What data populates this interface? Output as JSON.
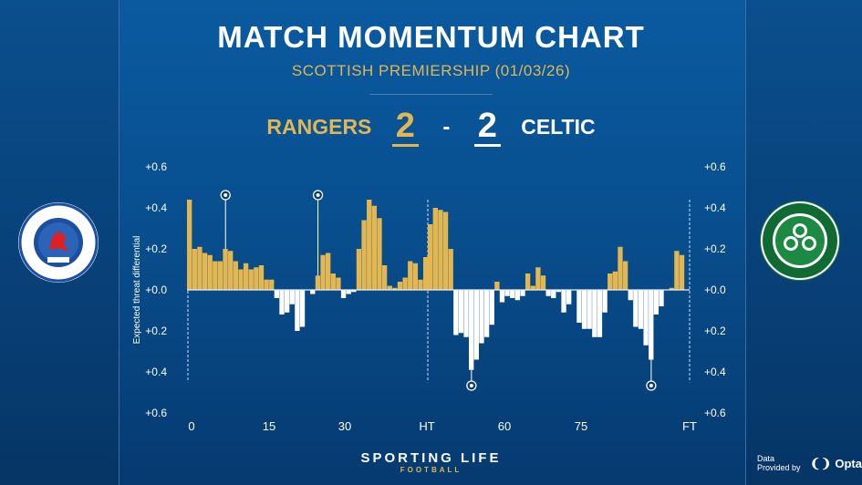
{
  "header": {
    "title": "MATCH MOMENTUM CHART",
    "subtitle": "SCOTTISH PREMIERSHIP (01/03/26)"
  },
  "score": {
    "home_team": "RANGERS",
    "home_goals": "2",
    "separator": "-",
    "away_goals": "2",
    "away_team": "CELTIC"
  },
  "colors": {
    "home": "#e2b752",
    "away": "#ffffff",
    "background": "#0a5aa0"
  },
  "logos": {
    "home": "Rangers Football Club crest - READY",
    "away": "The Celtic Football Club 1888 crest"
  },
  "footer": {
    "brand": "SPORTING LIFE",
    "brand_sub": "FOOTBALL",
    "data_credit": "Data Provided by",
    "data_brand": "Opta"
  },
  "chart_data": {
    "type": "bar",
    "ylabel": "Expected threat differential",
    "ylim": [
      -0.6,
      0.6
    ],
    "y_ticks": [
      0.6,
      0.4,
      0.2,
      0.0,
      -0.2,
      -0.4,
      -0.6
    ],
    "y_tick_labels": [
      "+0.6",
      "+0.4",
      "+0.2",
      "+0.0",
      "+0.2",
      "+0.4",
      "+0.6"
    ],
    "x_tick_labels": [
      "0",
      "15",
      "30",
      "HT",
      "60",
      "75",
      "FT"
    ],
    "positive_team": "Rangers",
    "negative_team": "Celtic",
    "first_half": {
      "start_minute": 0,
      "values": [
        0.44,
        0.2,
        0.21,
        0.18,
        0.17,
        0.14,
        0.14,
        0.2,
        0.19,
        0.14,
        0.1,
        0.13,
        0.1,
        0.11,
        0.12,
        0.05,
        0.05,
        -0.04,
        -0.12,
        -0.11,
        -0.07,
        -0.2,
        -0.18,
        0.0,
        -0.02,
        0.07,
        0.17,
        0.18,
        0.08,
        0.06,
        -0.04,
        -0.02,
        -0.01,
        0.2,
        0.34,
        0.44,
        0.41,
        0.35,
        0.12,
        0.02,
        0.01,
        0.04,
        0.06,
        0.14,
        0.13,
        0.05,
        0.16
      ]
    },
    "second_half": {
      "start_minute": 45,
      "values": [
        0.32,
        0.4,
        0.39,
        0.38,
        0.2,
        -0.22,
        -0.21,
        -0.23,
        -0.39,
        -0.34,
        -0.26,
        -0.23,
        -0.17,
        0.04,
        -0.06,
        -0.03,
        -0.04,
        -0.05,
        -0.03,
        0.08,
        0.02,
        0.11,
        0.07,
        -0.03,
        -0.04,
        -0.01,
        -0.11,
        -0.07,
        0.0,
        -0.16,
        -0.19,
        -0.19,
        -0.23,
        -0.23,
        -0.11,
        0.08,
        0.09,
        0.21,
        0.14,
        -0.05,
        -0.18,
        -0.19,
        -0.27,
        -0.34,
        -0.12,
        -0.08,
        0.0,
        0.01,
        0.19,
        0.17
      ]
    },
    "goals": [
      {
        "team": "Rangers",
        "minute": 7
      },
      {
        "team": "Rangers",
        "minute": 25
      },
      {
        "team": "Celtic",
        "minute": 53
      },
      {
        "team": "Celtic",
        "minute": 88
      }
    ]
  }
}
